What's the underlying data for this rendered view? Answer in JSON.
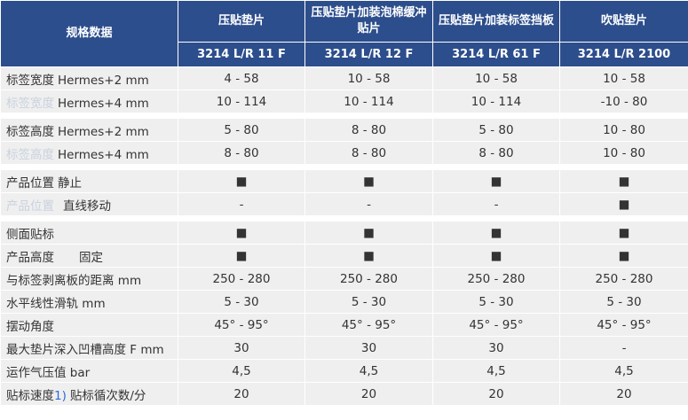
{
  "header": {
    "title": "规格数据",
    "columns": [
      {
        "name": "压贴垫片",
        "model": "3214 L/R 11 F"
      },
      {
        "name": "压贴垫片加装泡棉缓冲贴片",
        "model": "3214 L/R 12 F"
      },
      {
        "name": "压贴垫片加装标签挡板",
        "model": "3214 L/R 61 F"
      },
      {
        "name": "吹贴垫片",
        "model": "3214 L/R 2100"
      }
    ]
  },
  "table": {
    "rows": [
      {
        "label": "标签宽度",
        "label_faded": false,
        "spec": "Hermes+2 mm",
        "group_start": true,
        "cells": [
          "4 - 58",
          "10 - 58",
          "10 - 58",
          "10 - 58"
        ]
      },
      {
        "label": "标签宽度",
        "label_faded": true,
        "spec": "Hermes+4 mm",
        "group_start": false,
        "cells": [
          "10 - 114",
          "10 - 114",
          "10 - 114",
          "-10 - 80"
        ]
      },
      {
        "label": "标签高度",
        "label_faded": false,
        "spec": "Hermes+2 mm",
        "group_start": true,
        "cells": [
          "5 - 80",
          "8 - 80",
          "5 - 80",
          "10 - 80"
        ]
      },
      {
        "label": "标签高度",
        "label_faded": true,
        "spec": "Hermes+4 mm",
        "group_start": false,
        "cells": [
          "8 - 80",
          "8 - 80",
          "8 - 80",
          "10 - 80"
        ]
      },
      {
        "label": "产品位置",
        "label_faded": false,
        "spec": "静止",
        "group_start": true,
        "cells": [
          "■",
          "■",
          "■",
          "■"
        ]
      },
      {
        "label": "产品位置",
        "label_faded": true,
        "spec": "直线移动",
        "group_start": false,
        "cells": [
          "-",
          "-",
          "-",
          "■"
        ]
      },
      {
        "label": "侧面贴标",
        "label_faded": false,
        "group_start": true,
        "cells": [
          "■",
          "■",
          "■",
          "■"
        ]
      },
      {
        "label": "产品高度",
        "label_faded": false,
        "spec": "固定",
        "group_start": false,
        "cells": [
          "■",
          "■",
          "■",
          "■"
        ]
      },
      {
        "label": "与标签剥离板的距离 mm",
        "label_faded": false,
        "group_start": false,
        "cells": [
          "250 - 280",
          "250 - 280",
          "250 - 280",
          "250 - 280"
        ]
      },
      {
        "label": "水平线性滑轨 mm",
        "label_faded": false,
        "group_start": false,
        "cells": [
          "5 - 30",
          "5 - 30",
          "5 - 30",
          "5 - 30"
        ]
      },
      {
        "label": "摆动角度",
        "label_faded": false,
        "group_start": false,
        "cells": [
          "45° - 95°",
          "45° - 95°",
          "45° - 95°",
          "45° - 95°"
        ]
      },
      {
        "label": "最大垫片深入凹槽高度 F mm",
        "label_faded": false,
        "group_start": false,
        "cells": [
          "30",
          "30",
          "30",
          "-"
        ]
      },
      {
        "label": "运作气压值 bar",
        "label_faded": false,
        "group_start": false,
        "cells": [
          "4,5",
          "4,5",
          "4,5",
          "4,5"
        ]
      },
      {
        "label": "贴标速度",
        "label_faded": false,
        "footnote": "1)",
        "spec": "贴标循次数/分",
        "group_start": false,
        "cells": [
          "20",
          "20",
          "20",
          "20"
        ]
      }
    ]
  }
}
